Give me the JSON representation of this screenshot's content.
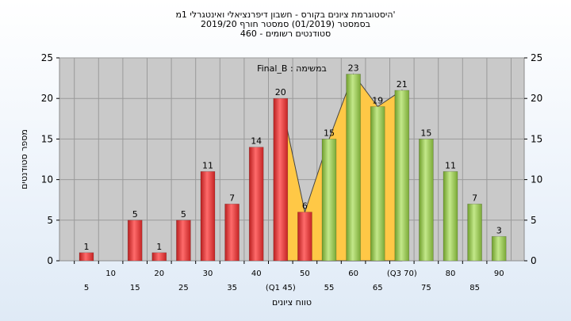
{
  "title_lines": [
    "היסטוגרמת ציונים בקורס - חשבון דיפרנציאלי ואינטגרלי 1מ'",
    "בסמסטר  (01/2019)  סמסטר חורף 2019/20",
    "סטודנטים רשומים - 460"
  ],
  "annotation": "Final_B : במשימה",
  "colors": {
    "fail_bar": "#e23b3b",
    "pass_bar": "#9ccc57",
    "area": "#ffc846",
    "plot_bg": "#c9c9c9",
    "grid": "#9a9a9a"
  },
  "chart_data": {
    "type": "bar",
    "title": "היסטוגרמת ציונים בקורס - חשבון דיפרנציאלי ואינטגרלי 1מ'",
    "xlabel": "טווח ציונים",
    "ylabel": "מספר סטודנטים",
    "ylim": [
      0,
      25
    ],
    "yticks": [
      0,
      5,
      10,
      15,
      20,
      25
    ],
    "grid": true,
    "x_labels_bottom_row": [
      "5",
      "15",
      "25",
      "35",
      "(Q1 45)",
      "55",
      "65",
      "75",
      "85"
    ],
    "x_labels_top_row": [
      "10",
      "20",
      "30",
      "40",
      "50",
      "60",
      "(Q3 70)",
      "80",
      "90"
    ],
    "series": [
      {
        "x": [
          5,
          10,
          15,
          20,
          25,
          30,
          35,
          40,
          45,
          50,
          55,
          60,
          65,
          70,
          75,
          80,
          85,
          90
        ],
        "values": [
          1,
          0,
          5,
          1,
          5,
          11,
          7,
          14,
          20,
          6,
          15,
          23,
          19,
          21,
          15,
          11,
          7,
          3
        ],
        "colors": [
          "fail",
          "fail",
          "fail",
          "fail",
          "fail",
          "fail",
          "fail",
          "fail",
          "fail",
          "fail",
          "pass",
          "pass",
          "pass",
          "pass",
          "pass",
          "pass",
          "pass",
          "pass"
        ]
      }
    ],
    "interquartile_area": {
      "from_x": 45,
      "to_x": 70
    }
  }
}
